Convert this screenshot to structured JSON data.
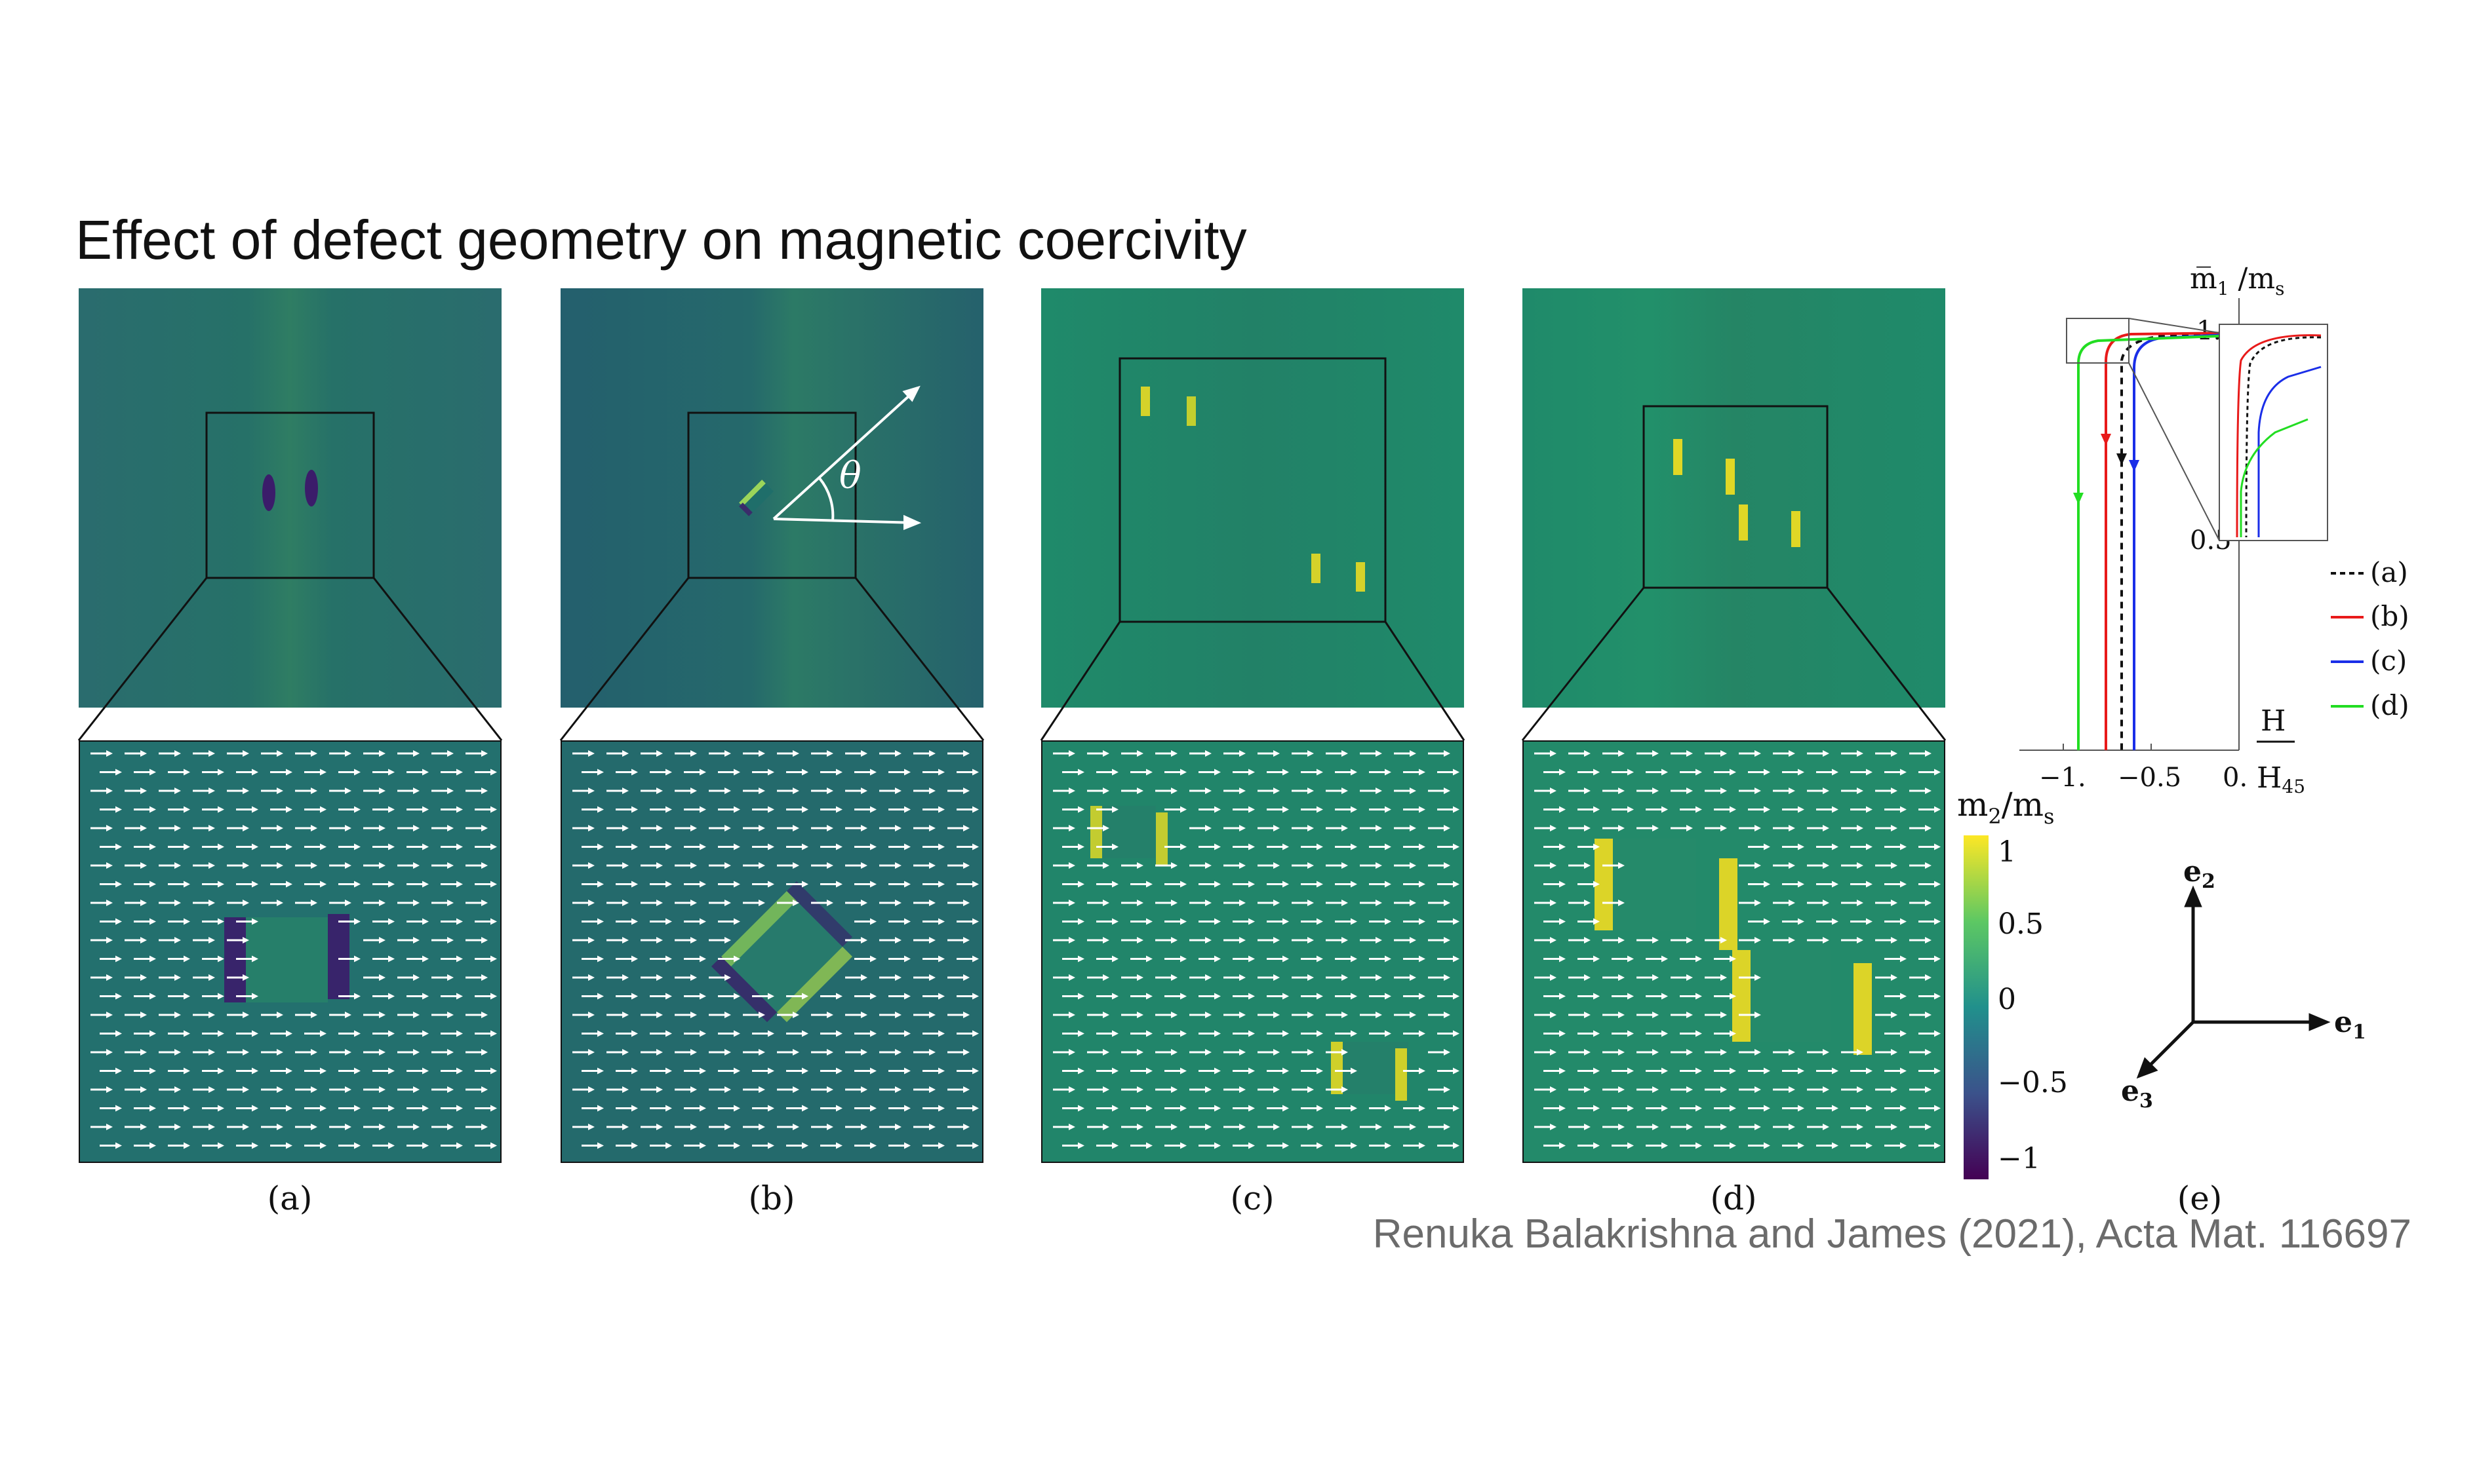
{
  "title": "Effect of defect geometry on magnetic coercivity",
  "citation": "Renuka Balakrishna and James (2021), Acta Mat. 116697",
  "panels": {
    "a": "(a)",
    "b": "(b)",
    "c": "(c)",
    "d": "(d)",
    "e": "(e)"
  },
  "angle_label": "θ",
  "colorbar": {
    "label_main": "m",
    "label_sub1": "2",
    "label_slash": "/m",
    "label_sub2": "s",
    "ticks": [
      "1",
      "0.5",
      "0",
      "−0.5",
      "−1"
    ]
  },
  "axes_triad": {
    "e1": "e",
    "e1_sub": "1",
    "e2": "e",
    "e2_sub": "2",
    "e3": "e",
    "e3_sub": "3"
  },
  "hysteresis": {
    "y_label_main": "m̅",
    "y_label_sub": "1",
    "y_label_rest": " /m",
    "y_label_sub2": "s",
    "y_ticks": [
      "1.",
      "0.5"
    ],
    "x_ticks": [
      "−1.",
      "−0.5",
      "0."
    ],
    "x_label_num": "H",
    "x_label_den": "H",
    "x_label_den_sub": "45",
    "legend": [
      "(a)",
      "(b)",
      "(c)",
      "(d)"
    ],
    "colors": {
      "a": "#111111",
      "b": "#e81a1a",
      "c": "#1a2ee8",
      "d": "#22dd22"
    }
  },
  "colormap": {
    "low": "#440154",
    "mid": "#21908c",
    "high": "#fde725",
    "background": "#23706e"
  }
}
